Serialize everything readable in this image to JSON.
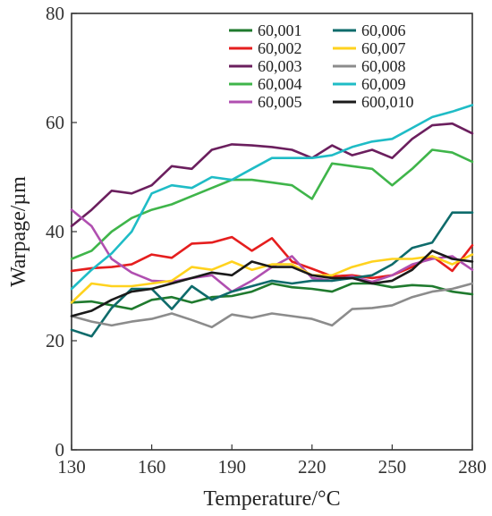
{
  "chart_data": {
    "type": "line",
    "xlabel": "Temperature/°C",
    "ylabel": "Warpage/µm",
    "xlim": [
      130,
      280
    ],
    "ylim": [
      0,
      80
    ],
    "xticks": [
      130,
      160,
      190,
      220,
      250,
      280
    ],
    "yticks": [
      0,
      20,
      40,
      60,
      80
    ],
    "grid": false,
    "legend_position": "top-right",
    "x": [
      130,
      137.5,
      145,
      152.5,
      160,
      167.5,
      175,
      182.5,
      190,
      197.5,
      205,
      212.5,
      220,
      227.5,
      235,
      242.5,
      250,
      257.5,
      265,
      272.5,
      280
    ],
    "series": [
      {
        "name": "60,001",
        "color": "#1f7a2e",
        "values": [
          27.0,
          27.2,
          26.5,
          25.8,
          27.5,
          28.0,
          27.0,
          28.0,
          28.2,
          29.0,
          30.5,
          29.8,
          29.5,
          29.0,
          30.5,
          30.5,
          29.8,
          30.2,
          30.0,
          29.0,
          28.5
        ]
      },
      {
        "name": "60,002",
        "color": "#e51e1e",
        "values": [
          32.8,
          33.3,
          33.5,
          34.0,
          35.8,
          35.2,
          37.8,
          38.0,
          39.0,
          36.5,
          38.8,
          34.5,
          33.2,
          31.8,
          32.0,
          31.5,
          32.0,
          33.5,
          35.5,
          32.8,
          37.5
        ]
      },
      {
        "name": "60,003",
        "color": "#6b1f5e",
        "values": [
          41.0,
          44.0,
          47.5,
          47.0,
          48.5,
          52.0,
          51.5,
          55.0,
          56.0,
          55.8,
          55.5,
          55.0,
          53.5,
          55.8,
          54.0,
          55.0,
          53.5,
          57.0,
          59.5,
          59.8,
          58.0
        ]
      },
      {
        "name": "60,004",
        "color": "#3fb54a",
        "values": [
          35.0,
          36.5,
          40.0,
          42.5,
          44.0,
          45.0,
          46.5,
          48.0,
          49.5,
          49.5,
          49.0,
          48.5,
          46.0,
          52.5,
          52.0,
          51.5,
          48.5,
          51.5,
          55.0,
          54.5,
          52.8
        ]
      },
      {
        "name": "60,005",
        "color": "#b04fb0",
        "values": [
          44.0,
          41.0,
          35.0,
          32.5,
          31.0,
          30.8,
          31.5,
          32.0,
          29.0,
          31.0,
          33.5,
          35.5,
          31.5,
          31.0,
          31.8,
          30.8,
          32.0,
          34.0,
          35.0,
          35.5,
          33.0
        ]
      },
      {
        "name": "60,006",
        "color": "#0e6b6b",
        "values": [
          22.0,
          20.8,
          26.0,
          29.5,
          29.5,
          25.8,
          30.0,
          27.5,
          29.0,
          30.0,
          31.0,
          30.5,
          31.0,
          31.0,
          31.5,
          32.0,
          34.0,
          37.0,
          38.0,
          43.5,
          43.5
        ]
      },
      {
        "name": "60,007",
        "color": "#ffd21e",
        "values": [
          27.0,
          30.5,
          30.0,
          30.0,
          30.5,
          31.0,
          33.5,
          33.0,
          34.5,
          33.0,
          34.0,
          34.0,
          32.0,
          32.0,
          33.5,
          34.5,
          35.0,
          35.0,
          35.5,
          34.0,
          35.8
        ]
      },
      {
        "name": "60,008",
        "color": "#8c8c8c",
        "values": [
          24.5,
          23.5,
          22.8,
          23.5,
          24.0,
          25.0,
          23.8,
          22.5,
          24.8,
          24.2,
          25.0,
          24.5,
          24.0,
          22.8,
          25.8,
          26.0,
          26.5,
          28.0,
          29.0,
          29.5,
          30.5
        ]
      },
      {
        "name": "60,009",
        "color": "#1fbcc6",
        "values": [
          29.5,
          33.0,
          36.0,
          40.0,
          47.0,
          48.5,
          48.0,
          50.0,
          49.5,
          51.5,
          53.5,
          53.5,
          53.5,
          54.0,
          55.5,
          56.5,
          57.0,
          59.0,
          61.0,
          62.0,
          63.2
        ]
      },
      {
        "name": "600,010",
        "color": "#1a1a1a",
        "values": [
          24.5,
          25.5,
          27.5,
          29.0,
          29.5,
          30.5,
          31.5,
          32.5,
          32.0,
          34.5,
          33.5,
          33.5,
          32.0,
          31.5,
          31.5,
          30.5,
          31.0,
          33.0,
          36.5,
          35.0,
          34.5
        ]
      }
    ]
  }
}
